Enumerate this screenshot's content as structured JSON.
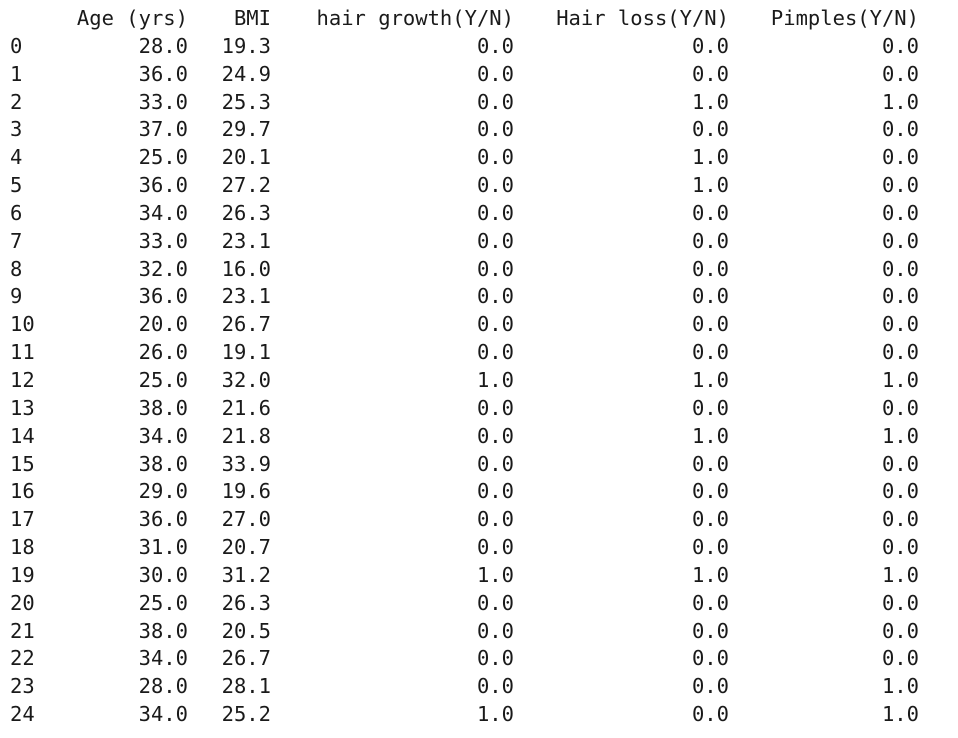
{
  "dataframe": {
    "columns": [
      "Age (yrs)",
      "BMI",
      "hair growth(Y/N)",
      "Hair loss(Y/N)",
      "Pimples(Y/N)"
    ],
    "rows": [
      {
        "index": "0",
        "values": [
          "28.0",
          "19.3",
          "0.0",
          "0.0",
          "0.0"
        ]
      },
      {
        "index": "1",
        "values": [
          "36.0",
          "24.9",
          "0.0",
          "0.0",
          "0.0"
        ]
      },
      {
        "index": "2",
        "values": [
          "33.0",
          "25.3",
          "0.0",
          "1.0",
          "1.0"
        ]
      },
      {
        "index": "3",
        "values": [
          "37.0",
          "29.7",
          "0.0",
          "0.0",
          "0.0"
        ]
      },
      {
        "index": "4",
        "values": [
          "25.0",
          "20.1",
          "0.0",
          "1.0",
          "0.0"
        ]
      },
      {
        "index": "5",
        "values": [
          "36.0",
          "27.2",
          "0.0",
          "1.0",
          "0.0"
        ]
      },
      {
        "index": "6",
        "values": [
          "34.0",
          "26.3",
          "0.0",
          "0.0",
          "0.0"
        ]
      },
      {
        "index": "7",
        "values": [
          "33.0",
          "23.1",
          "0.0",
          "0.0",
          "0.0"
        ]
      },
      {
        "index": "8",
        "values": [
          "32.0",
          "16.0",
          "0.0",
          "0.0",
          "0.0"
        ]
      },
      {
        "index": "9",
        "values": [
          "36.0",
          "23.1",
          "0.0",
          "0.0",
          "0.0"
        ]
      },
      {
        "index": "10",
        "values": [
          "20.0",
          "26.7",
          "0.0",
          "0.0",
          "0.0"
        ]
      },
      {
        "index": "11",
        "values": [
          "26.0",
          "19.1",
          "0.0",
          "0.0",
          "0.0"
        ]
      },
      {
        "index": "12",
        "values": [
          "25.0",
          "32.0",
          "1.0",
          "1.0",
          "1.0"
        ]
      },
      {
        "index": "13",
        "values": [
          "38.0",
          "21.6",
          "0.0",
          "0.0",
          "0.0"
        ]
      },
      {
        "index": "14",
        "values": [
          "34.0",
          "21.8",
          "0.0",
          "1.0",
          "1.0"
        ]
      },
      {
        "index": "15",
        "values": [
          "38.0",
          "33.9",
          "0.0",
          "0.0",
          "0.0"
        ]
      },
      {
        "index": "16",
        "values": [
          "29.0",
          "19.6",
          "0.0",
          "0.0",
          "0.0"
        ]
      },
      {
        "index": "17",
        "values": [
          "36.0",
          "27.0",
          "0.0",
          "0.0",
          "0.0"
        ]
      },
      {
        "index": "18",
        "values": [
          "31.0",
          "20.7",
          "0.0",
          "0.0",
          "0.0"
        ]
      },
      {
        "index": "19",
        "values": [
          "30.0",
          "31.2",
          "1.0",
          "1.0",
          "1.0"
        ]
      },
      {
        "index": "20",
        "values": [
          "25.0",
          "26.3",
          "0.0",
          "0.0",
          "0.0"
        ]
      },
      {
        "index": "21",
        "values": [
          "38.0",
          "20.5",
          "0.0",
          "0.0",
          "0.0"
        ]
      },
      {
        "index": "22",
        "values": [
          "34.0",
          "26.7",
          "0.0",
          "0.0",
          "0.0"
        ]
      },
      {
        "index": "23",
        "values": [
          "28.0",
          "28.1",
          "0.0",
          "0.0",
          "1.0"
        ]
      },
      {
        "index": "24",
        "values": [
          "34.0",
          "25.2",
          "1.0",
          "0.0",
          "1.0"
        ]
      }
    ]
  }
}
